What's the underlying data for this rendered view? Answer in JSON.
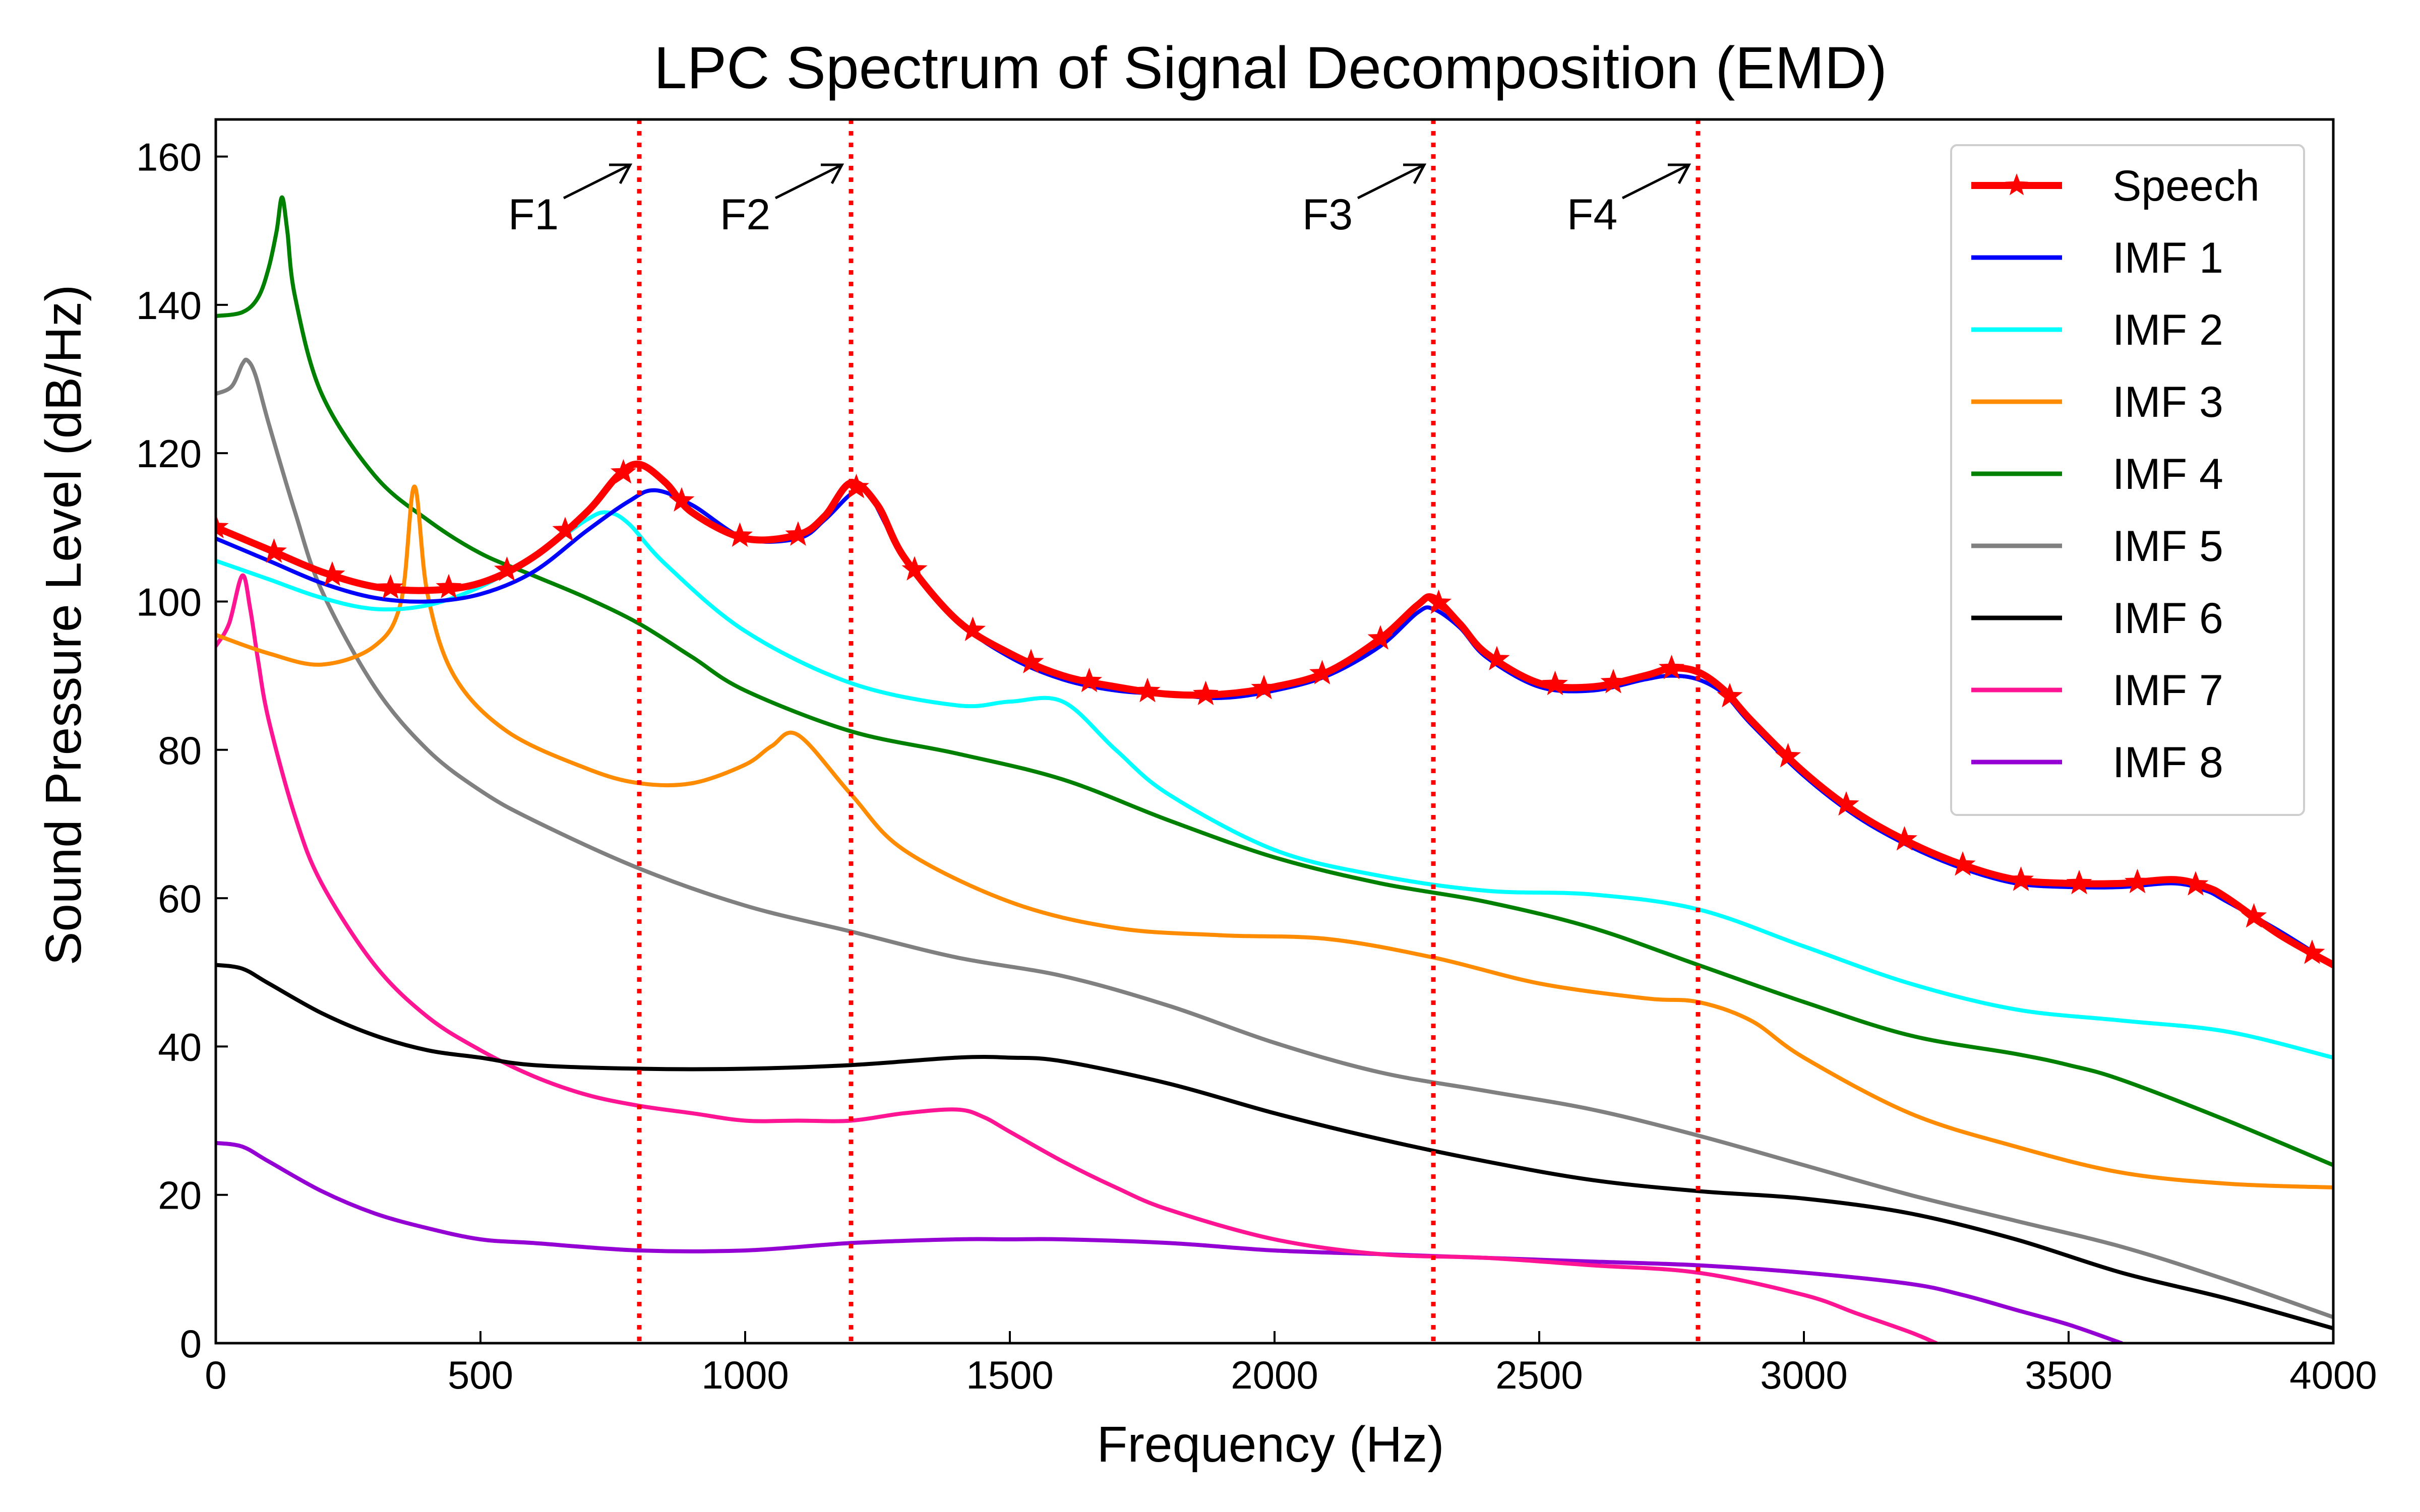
{
  "chart_data": {
    "type": "line",
    "title": "LPC Spectrum of Signal Decomposition (EMD)",
    "xlabel": "Frequency (Hz)",
    "ylabel": "Sound Pressure Level (dB/Hz)",
    "xlim": [
      0,
      4000
    ],
    "ylim": [
      0,
      165
    ],
    "xticks": [
      "0",
      "500",
      "1000",
      "1500",
      "2000",
      "2500",
      "3000",
      "3500",
      "4000"
    ],
    "yticks": [
      "0",
      "20",
      "40",
      "60",
      "80",
      "100",
      "120",
      "140",
      "160"
    ],
    "grid": false,
    "legend_position": "top-right",
    "formant_lines": [
      {
        "label": "F1",
        "x": 800
      },
      {
        "label": "F2",
        "x": 1200
      },
      {
        "label": "F3",
        "x": 2300
      },
      {
        "label": "F4",
        "x": 2800
      }
    ],
    "series": [
      {
        "name": "Speech",
        "color": "#ff0000",
        "marker": "star",
        "marker_x": [
          0,
          110,
          220,
          330,
          440,
          550,
          660,
          770,
          880,
          990,
          1100,
          1210,
          1320,
          1430,
          1540,
          1650,
          1760,
          1870,
          1980,
          2090,
          2200,
          2310,
          2420,
          2530,
          2640,
          2750,
          2860,
          2970,
          3080,
          3190,
          3300,
          3410,
          3520,
          3630,
          3740,
          3850,
          3960
        ],
        "x": [
          0,
          100,
          200,
          300,
          400,
          500,
          600,
          700,
          760,
          800,
          850,
          900,
          1000,
          1100,
          1150,
          1200,
          1250,
          1300,
          1400,
          1500,
          1600,
          1700,
          1800,
          1900,
          2000,
          2100,
          2200,
          2270,
          2300,
          2350,
          2400,
          2500,
          2600,
          2700,
          2750,
          2800,
          2850,
          2900,
          3000,
          3100,
          3200,
          3300,
          3400,
          3500,
          3600,
          3700,
          3760,
          3800,
          3900,
          4000
        ],
        "values": [
          110,
          107,
          104,
          102,
          101.5,
          102.5,
          106,
          112,
          117,
          118.5,
          116,
          112,
          108.5,
          109,
          111.5,
          116,
          113,
          106,
          97.5,
          93,
          90,
          88.5,
          87.5,
          87.5,
          88.5,
          90.5,
          95,
          99.5,
          100.5,
          97,
          93,
          89,
          88.5,
          90,
          91,
          90.5,
          88,
          84,
          77,
          71.5,
          67.5,
          64.5,
          62.5,
          62,
          62,
          62.5,
          61.5,
          60,
          55,
          51
        ]
      },
      {
        "name": "IMF 1",
        "color": "#0000ff",
        "x": [
          0,
          100,
          200,
          300,
          400,
          500,
          600,
          700,
          780,
          830,
          900,
          1000,
          1100,
          1150,
          1200,
          1230,
          1300,
          1400,
          1500,
          1600,
          1700,
          1800,
          1900,
          2000,
          2100,
          2200,
          2270,
          2300,
          2350,
          2400,
          2500,
          2600,
          2700,
          2750,
          2800,
          2850,
          2900,
          3000,
          3100,
          3200,
          3300,
          3400,
          3500,
          3600,
          3700,
          3760,
          3800,
          3900,
          4000
        ],
        "values": [
          108.5,
          105.5,
          102.5,
          100.5,
          100,
          101,
          104,
          109.5,
          113.5,
          115,
          113,
          108.5,
          108.5,
          111,
          114.5,
          115,
          106,
          97.5,
          92.5,
          89.5,
          88,
          87.5,
          87,
          88,
          90,
          94,
          98.5,
          99,
          96.5,
          92.5,
          88.5,
          88,
          89.5,
          90,
          89.5,
          87.5,
          83.5,
          76.5,
          71,
          67,
          64,
          62,
          61.5,
          61.5,
          62,
          61,
          59.5,
          55.5,
          51
        ]
      },
      {
        "name": "IMF 2",
        "color": "#00ffff",
        "x": [
          0,
          100,
          200,
          300,
          400,
          500,
          600,
          700,
          740,
          780,
          850,
          1000,
          1200,
          1400,
          1500,
          1600,
          1700,
          1800,
          2000,
          2200,
          2400,
          2600,
          2800,
          3000,
          3200,
          3400,
          3600,
          3800,
          4000
        ],
        "values": [
          105.5,
          103,
          100.5,
          99,
          99.5,
          102,
          106,
          111,
          112,
          110.5,
          105,
          96,
          89,
          86,
          86.5,
          86.5,
          80,
          74,
          66.5,
          63,
          61,
          60.5,
          58.5,
          53.5,
          48.5,
          45,
          43.5,
          42,
          38.5
        ]
      },
      {
        "name": "IMF 3",
        "color": "#ff8c00",
        "x": [
          0,
          100,
          200,
          300,
          350,
          375,
          400,
          450,
          550,
          700,
          800,
          900,
          1000,
          1050,
          1100,
          1200,
          1300,
          1500,
          1700,
          1900,
          2100,
          2300,
          2500,
          2700,
          2800,
          2900,
          3000,
          3200,
          3400,
          3600,
          3800,
          4000
        ],
        "values": [
          95.5,
          93,
          91.5,
          94,
          100,
          115.5,
          101,
          90,
          82.5,
          77.5,
          75.5,
          75.5,
          78,
          80.5,
          82,
          74,
          66.5,
          59.5,
          56,
          55,
          54.5,
          52,
          48.5,
          46.5,
          46,
          43.5,
          38.5,
          31,
          26.5,
          23,
          21.5,
          21
        ]
      },
      {
        "name": "IMF 4",
        "color": "#008000",
        "x": [
          0,
          50,
          80,
          100,
          115,
          125,
          135,
          150,
          200,
          300,
          400,
          500,
          600,
          700,
          800,
          900,
          1000,
          1200,
          1400,
          1600,
          1800,
          2000,
          2200,
          2400,
          2600,
          2800,
          3000,
          3200,
          3400,
          3500,
          3600,
          3800,
          4000
        ],
        "values": [
          138.5,
          139,
          141,
          145,
          150,
          154.5,
          150,
          141,
          128,
          117,
          111,
          106.5,
          103.5,
          100.5,
          97,
          92.5,
          88,
          82.5,
          79.5,
          76,
          70.5,
          65.5,
          62,
          59.5,
          56,
          51,
          46,
          41.5,
          39,
          37.5,
          35.5,
          30,
          24
        ]
      },
      {
        "name": "IMF 5",
        "color": "#808080",
        "x": [
          0,
          30,
          50,
          60,
          75,
          100,
          150,
          200,
          300,
          400,
          500,
          600,
          800,
          1000,
          1200,
          1400,
          1600,
          1800,
          2000,
          2200,
          2400,
          2600,
          2800,
          3000,
          3200,
          3400,
          3600,
          3800,
          4000
        ],
        "values": [
          128,
          129,
          132,
          132.5,
          130.5,
          124,
          112,
          101.5,
          88.5,
          80,
          74.5,
          70.5,
          64,
          59,
          55.5,
          52,
          49.5,
          45.5,
          40.5,
          36.5,
          34,
          31.5,
          28,
          24,
          20,
          16.5,
          13,
          8.5,
          3.5
        ]
      },
      {
        "name": "IMF 6",
        "color": "#000000",
        "x": [
          0,
          50,
          100,
          200,
          300,
          400,
          500,
          600,
          800,
          1000,
          1200,
          1400,
          1500,
          1600,
          1800,
          2000,
          2200,
          2400,
          2600,
          2800,
          3000,
          3200,
          3400,
          3600,
          3800,
          4000
        ],
        "values": [
          51,
          50.5,
          48.5,
          44.5,
          41.5,
          39.5,
          38.5,
          37.5,
          37,
          37,
          37.5,
          38.5,
          38.5,
          38,
          35,
          31,
          27.5,
          24.5,
          22,
          20.5,
          19.5,
          17.5,
          14,
          9.5,
          6,
          2
        ]
      },
      {
        "name": "IMF 7",
        "color": "#ff1493",
        "x": [
          0,
          25,
          50,
          65,
          80,
          100,
          150,
          200,
          300,
          400,
          500,
          600,
          700,
          800,
          900,
          1000,
          1100,
          1200,
          1300,
          1400,
          1450,
          1500,
          1600,
          1700,
          1800,
          2000,
          2200,
          2400,
          2600,
          2800,
          3000,
          3100,
          3200,
          3250
        ],
        "values": [
          94,
          97,
          103.5,
          99,
          92,
          84,
          71,
          62,
          51,
          44,
          39.5,
          36,
          33.5,
          32,
          31,
          30,
          30,
          30,
          31,
          31.5,
          30.5,
          28.5,
          24.5,
          21,
          18,
          14,
          12,
          11.5,
          10.5,
          9.5,
          6.5,
          4,
          1.5,
          0
        ]
      },
      {
        "name": "IMF 8",
        "color": "#9400d3",
        "x": [
          0,
          50,
          100,
          200,
          300,
          400,
          500,
          600,
          800,
          1000,
          1200,
          1400,
          1500,
          1600,
          1800,
          2000,
          2200,
          2400,
          2600,
          2800,
          3000,
          3200,
          3300,
          3400,
          3500,
          3600
        ],
        "values": [
          27,
          26.5,
          24.5,
          20.5,
          17.5,
          15.5,
          14,
          13.5,
          12.5,
          12.5,
          13.5,
          14,
          14,
          14,
          13.5,
          12.5,
          12,
          11.5,
          11,
          10.5,
          9.5,
          8,
          6.5,
          4.5,
          2.5,
          0
        ]
      }
    ]
  }
}
